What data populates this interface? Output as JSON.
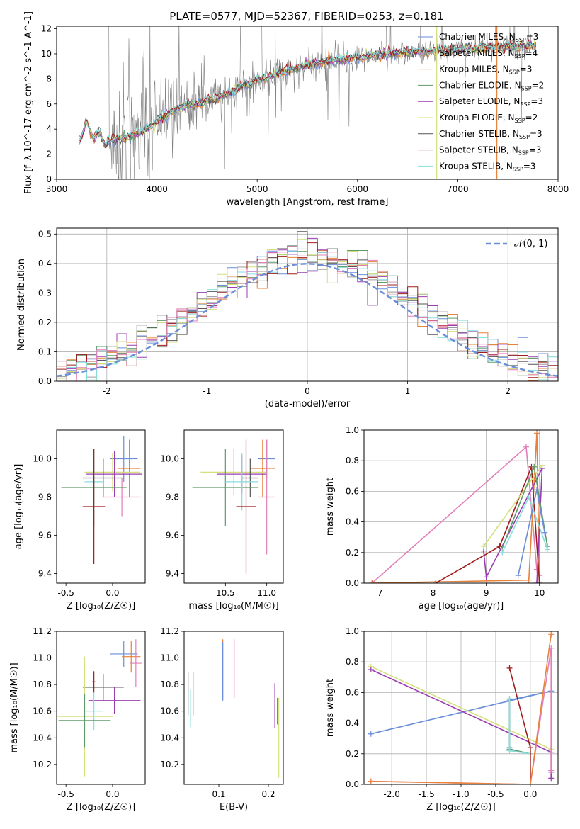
{
  "figure_title": "PLATE=0577, MJD=52367, FIBERID=0253, z=0.181",
  "colors": {
    "Chabrier MILES": "#6a8ed9",
    "Salpeter MILES": "#9a9a9a",
    "Kroupa MILES": "#e8823a",
    "Chabrier ELODIE": "#5f9b6a",
    "Salpeter ELODIE": "#9b3db3",
    "Kroupa ELODIE": "#d4e07a",
    "Chabrier STELIB": "#555555",
    "Salpeter STELIB": "#a01c1c",
    "Kroupa STELIB": "#86dede",
    "magenta": "#e27fb8",
    "grid": "#b0b0b0"
  },
  "chart_data": [
    {
      "id": "spectrum",
      "type": "line",
      "title": "PLATE=0577, MJD=52367, FIBERID=0253, z=0.181",
      "xlabel": "wavelength [Angstrom, rest frame]",
      "ylabel": "Flux [f_λ 10^-17 erg cm^-2 s^-1 A^-1]",
      "xlim": [
        3000,
        8000
      ],
      "ylim": [
        0,
        12.2
      ],
      "xticks": [
        3000,
        4000,
        5000,
        6000,
        7000,
        8000
      ],
      "yticks": [
        0,
        2,
        4,
        6,
        8,
        10,
        12
      ],
      "grid": false,
      "legend_position": "top-right",
      "legend": [
        {
          "label": "Chabrier MILES, N",
          "sub": "SSP",
          "suffix": "=3",
          "color": "#6a8ed9"
        },
        {
          "label": "Salpeter MILES, N",
          "sub": "SSP",
          "suffix": "=4",
          "color": "#9a9a9a"
        },
        {
          "label": "Kroupa MILES, N",
          "sub": "SSP",
          "suffix": "=3",
          "color": "#e8823a"
        },
        {
          "label": "Chabrier ELODIE, N",
          "sub": "SSP",
          "suffix": "=2",
          "color": "#5f9b6a"
        },
        {
          "label": "Salpeter ELODIE, N",
          "sub": "SSP",
          "suffix": "=3",
          "color": "#9b3db3"
        },
        {
          "label": "Kroupa ELODIE, N",
          "sub": "SSP",
          "suffix": "=2",
          "color": "#d4e07a"
        },
        {
          "label": "Chabrier STELIB, N",
          "sub": "SSP",
          "suffix": "=3",
          "color": "#555555"
        },
        {
          "label": "Salpeter STELIB, N",
          "sub": "SSP",
          "suffix": "=3",
          "color": "#a01c1c"
        },
        {
          "label": "Kroupa STELIB, N",
          "sub": "SSP",
          "suffix": "=3",
          "color": "#86dede"
        }
      ],
      "model_continuum": {
        "x": [
          3230,
          3300,
          3400,
          3500,
          3600,
          3700,
          3800,
          3900,
          4000,
          4100,
          4200,
          4300,
          4400,
          4500,
          4600,
          4700,
          4800,
          4900,
          5000,
          5100,
          5200,
          5300,
          5400,
          5500,
          5600,
          5700,
          5800,
          5900,
          6000,
          6100,
          6200,
          6300,
          6400,
          6500,
          6600,
          6700,
          6800,
          6900,
          7000,
          7100,
          7200,
          7300,
          7400,
          7500,
          7600,
          7700,
          7800
        ],
        "y": [
          3.5,
          4.2,
          3.4,
          3.0,
          3.2,
          3.3,
          3.6,
          4.0,
          4.6,
          5.2,
          5.6,
          5.9,
          6.0,
          6.3,
          6.4,
          6.8,
          7.2,
          7.6,
          7.9,
          8.1,
          8.4,
          8.6,
          8.9,
          9.1,
          9.2,
          9.4,
          9.5,
          9.6,
          9.7,
          9.8,
          9.9,
          10.0,
          10.05,
          10.1,
          10.15,
          10.2,
          10.25,
          10.3,
          10.35,
          10.4,
          10.45,
          10.5,
          10.55,
          10.6,
          10.6,
          10.65,
          10.7
        ]
      },
      "vertical_lines": [
        {
          "x": 6790,
          "color": "#d4e07a"
        },
        {
          "x": 7390,
          "color": "#e8823a"
        }
      ]
    },
    {
      "id": "residuals",
      "type": "histogram",
      "xlabel": "(data-model)/error",
      "ylabel": "Normed distribution",
      "xlim": [
        -2.5,
        2.5
      ],
      "ylim": [
        0,
        0.52
      ],
      "xticks": [
        -2,
        -1,
        0,
        1,
        2
      ],
      "yticks": [
        0.0,
        0.1,
        0.2,
        0.3,
        0.4,
        0.5
      ],
      "grid": true,
      "bin_width": 0.1,
      "legend_position": "top-right",
      "legend": [
        {
          "label": "𝒩(0, 1)",
          "color": "#6a8ed9",
          "style": "dashed"
        }
      ],
      "reference_curve": "standard normal"
    },
    {
      "id": "age_vs_Z",
      "type": "errorbar",
      "xlabel": "Z [log₁₀(Z/Z☉)]",
      "ylabel": "age  [log₁₀(age/yr)]",
      "xlim": [
        -0.6,
        0.35
      ],
      "ylim": [
        9.35,
        10.15
      ],
      "xticks": [
        -0.5,
        0.0
      ],
      "yticks": [
        9.4,
        9.6,
        9.8,
        10.0
      ],
      "points": [
        {
          "x": 0.12,
          "xerr": 0.15,
          "y": 10.0,
          "yerr": 0.12,
          "color": "#6a8ed9"
        },
        {
          "x": 0.18,
          "xerr": 0.12,
          "y": 9.95,
          "yerr": 0.15,
          "color": "#e8823a"
        },
        {
          "x": 0.0,
          "xerr": 0.3,
          "y": 9.93,
          "yerr": 0.1,
          "color": "#d4e07a"
        },
        {
          "x": 0.02,
          "xerr": 0.3,
          "y": 9.92,
          "yerr": 0.12,
          "color": "#9b3db3"
        },
        {
          "x": -0.1,
          "xerr": 0.22,
          "y": 9.9,
          "yerr": 0.1,
          "color": "#555555"
        },
        {
          "x": 0.1,
          "xerr": 0.2,
          "y": 9.8,
          "yerr": 0.1,
          "color": "#e27fb8"
        },
        {
          "x": -0.2,
          "xerr": 0.35,
          "y": 9.85,
          "yerr": 0.2,
          "color": "#5f9b6a"
        },
        {
          "x": -0.2,
          "xerr": 0.1,
          "y": 9.88,
          "yerr": 0.15,
          "color": "#86dede"
        },
        {
          "x": -0.2,
          "xerr": 0.12,
          "y": 9.75,
          "yerr": 0.3,
          "color": "#a01c1c"
        }
      ]
    },
    {
      "id": "age_vs_mass",
      "type": "errorbar",
      "xlabel": "mass [log₁₀(M/M☉)]",
      "ylabel": "",
      "xlim": [
        10.0,
        11.2
      ],
      "ylim": [
        9.35,
        10.15
      ],
      "xticks": [
        10.5,
        11.0
      ],
      "yticks": [
        9.4,
        9.6,
        9.8,
        10.0
      ],
      "points": [
        {
          "x": 11.0,
          "xerr": 0.1,
          "y": 10.0,
          "yerr": 0.1,
          "color": "#6a8ed9"
        },
        {
          "x": 10.95,
          "xerr": 0.15,
          "y": 9.95,
          "yerr": 0.15,
          "color": "#e8823a"
        },
        {
          "x": 10.6,
          "xerr": 0.4,
          "y": 9.93,
          "yerr": 0.12,
          "color": "#d4e07a"
        },
        {
          "x": 10.7,
          "xerr": 0.3,
          "y": 9.92,
          "yerr": 0.1,
          "color": "#9b3db3"
        },
        {
          "x": 10.8,
          "xerr": 0.1,
          "y": 9.9,
          "yerr": 0.1,
          "color": "#555555"
        },
        {
          "x": 11.0,
          "xerr": 0.1,
          "y": 9.8,
          "yerr": 0.3,
          "color": "#e27fb8"
        },
        {
          "x": 10.5,
          "xerr": 0.4,
          "y": 9.85,
          "yerr": 0.2,
          "color": "#5f9b6a"
        },
        {
          "x": 10.7,
          "xerr": 0.2,
          "y": 9.88,
          "yerr": 0.15,
          "color": "#86dede"
        },
        {
          "x": 10.75,
          "xerr": 0.12,
          "y": 9.75,
          "yerr": 0.35,
          "color": "#a01c1c"
        }
      ]
    },
    {
      "id": "massweight_vs_age",
      "type": "line",
      "xlabel": "age  [log₁₀(age/yr)]",
      "ylabel": "mass weight",
      "xlim": [
        6.7,
        10.35
      ],
      "ylim": [
        0,
        1.0
      ],
      "xticks": [
        7,
        8,
        9,
        10
      ],
      "yticks": [
        0.0,
        0.2,
        0.4,
        0.6,
        0.8,
        1.0
      ],
      "grid": true,
      "series": [
        {
          "color": "#e27fb8",
          "x": [
            6.85,
            9.75,
            9.95,
            10.0
          ],
          "y": [
            0.0,
            0.89,
            0.09,
            0.05
          ]
        },
        {
          "color": "#e8823a",
          "x": [
            6.85,
            9.8,
            9.95,
            10.0
          ],
          "y": [
            0.0,
            0.02,
            0.98,
            0.0
          ]
        },
        {
          "color": "#a01c1c",
          "x": [
            8.05,
            9.25,
            9.85,
            10.0
          ],
          "y": [
            0.0,
            0.24,
            0.76,
            0.0
          ]
        },
        {
          "color": "#9b3db3",
          "x": [
            8.95,
            9.0,
            10.05,
            9.95
          ],
          "y": [
            0.21,
            0.04,
            0.75,
            0.0
          ]
        },
        {
          "color": "#d4e07a",
          "x": [
            8.95,
            10.05
          ],
          "y": [
            0.24,
            0.77
          ]
        },
        {
          "color": "#5f9b6a",
          "x": [
            9.3,
            9.9,
            10.15
          ],
          "y": [
            0.23,
            0.76,
            0.24
          ]
        },
        {
          "color": "#6a8ed9",
          "x": [
            9.6,
            9.95,
            10.1
          ],
          "y": [
            0.05,
            0.61,
            0.33
          ]
        },
        {
          "color": "#86dede",
          "x": [
            9.3,
            9.8,
            10.15
          ],
          "y": [
            0.2,
            0.56,
            0.22
          ]
        }
      ]
    },
    {
      "id": "mass_vs_Z",
      "type": "errorbar",
      "xlabel": "Z [log₁₀(Z/Z☉)]",
      "ylabel": "mass [log₁₀(M/M☉)]",
      "xlim": [
        -0.6,
        0.35
      ],
      "ylim": [
        10.05,
        11.2
      ],
      "xticks": [
        -0.5,
        0.0
      ],
      "yticks": [
        10.2,
        10.4,
        10.6,
        10.8,
        11.0,
        11.2
      ],
      "points": [
        {
          "x": 0.12,
          "xerr": 0.15,
          "y": 11.03,
          "yerr": 0.1,
          "color": "#6a8ed9"
        },
        {
          "x": 0.2,
          "xerr": 0.1,
          "y": 11.01,
          "yerr": 0.12,
          "color": "#e8823a"
        },
        {
          "x": 0.25,
          "xerr": 0.06,
          "y": 10.96,
          "yerr": 0.18,
          "color": "#e27fb8"
        },
        {
          "x": -0.1,
          "xerr": 0.22,
          "y": 10.78,
          "yerr": 0.1,
          "color": "#555555"
        },
        {
          "x": -0.2,
          "xerr": 0.02,
          "y": 10.82,
          "yerr": 0.08,
          "color": "#a01c1c"
        },
        {
          "x": 0.02,
          "xerr": 0.28,
          "y": 10.68,
          "yerr": 0.1,
          "color": "#9b3db3"
        },
        {
          "x": -0.2,
          "xerr": 0.1,
          "y": 10.6,
          "yerr": 0.14,
          "color": "#86dede"
        },
        {
          "x": -0.3,
          "xerr": 0.3,
          "y": 10.56,
          "yerr": 0.45,
          "color": "#d4e07a"
        },
        {
          "x": -0.3,
          "xerr": 0.28,
          "y": 10.53,
          "yerr": 0.2,
          "color": "#5f9b6a"
        }
      ]
    },
    {
      "id": "mass_vs_EBV",
      "type": "errorbar",
      "xlabel": "E(B-V)",
      "ylabel": "",
      "xlim": [
        0.03,
        0.23
      ],
      "ylim": [
        10.05,
        11.2
      ],
      "xticks": [
        0.1,
        0.2
      ],
      "yticks": [
        10.2,
        10.4,
        10.6,
        10.8,
        11.0,
        11.2
      ],
      "points": [
        {
          "x": 0.108,
          "yerr": 0.23,
          "y": 10.91,
          "color": "#e8823a"
        },
        {
          "x": 0.108,
          "yerr": 0.22,
          "y": 10.9,
          "color": "#6a8ed9"
        },
        {
          "x": 0.131,
          "yerr": 0.22,
          "y": 10.92,
          "color": "#e27fb8"
        },
        {
          "x": 0.038,
          "yerr": 0.16,
          "y": 10.73,
          "color": "#555555"
        },
        {
          "x": 0.048,
          "yerr": 0.16,
          "y": 10.73,
          "color": "#a01c1c"
        },
        {
          "x": 0.043,
          "yerr": 0.14,
          "y": 10.62,
          "color": "#86dede"
        },
        {
          "x": 0.213,
          "yerr": 0.17,
          "y": 10.64,
          "color": "#9b3db3"
        },
        {
          "x": 0.221,
          "yerr": 0.3,
          "y": 10.4,
          "color": "#d4e07a"
        },
        {
          "x": 0.218,
          "yerr": 0.1,
          "y": 10.6,
          "color": "#5f9b6a"
        }
      ]
    },
    {
      "id": "massweight_vs_Z",
      "type": "line",
      "xlabel": "Z [log₁₀(Z/Z☉)]",
      "ylabel": "mass weight",
      "xlim": [
        -2.4,
        0.4
      ],
      "ylim": [
        0,
        1.0
      ],
      "xticks": [
        -2.0,
        -1.5,
        -1.0,
        -0.5,
        0.0
      ],
      "yticks": [
        0.0,
        0.2,
        0.4,
        0.6,
        0.8,
        1.0
      ],
      "grid": true,
      "series": [
        {
          "color": "#6a8ed9",
          "x": [
            -2.3,
            0.3,
            -0.3,
            -0.3
          ],
          "y": [
            0.33,
            0.61,
            0.55,
            0.24
          ]
        },
        {
          "color": "#d4e07a",
          "x": [
            -2.3,
            0.3
          ],
          "y": [
            0.77,
            0.23
          ]
        },
        {
          "color": "#9b3db3",
          "x": [
            -2.3,
            0.3,
            0.3,
            0.3
          ],
          "y": [
            0.75,
            0.21,
            0.04,
            0.08
          ]
        },
        {
          "color": "#5f9b6a",
          "x": [
            -0.3,
            -0.3,
            0.0
          ],
          "y": [
            0.56,
            0.23,
            0.2
          ]
        },
        {
          "color": "#86dede",
          "x": [
            -0.3,
            -0.3,
            0.0
          ],
          "y": [
            0.56,
            0.22,
            0.2
          ]
        },
        {
          "color": "#a01c1c",
          "x": [
            -0.3,
            0.0,
            0.0
          ],
          "y": [
            0.76,
            0.24,
            0.0
          ]
        },
        {
          "color": "#e27fb8",
          "x": [
            -2.3,
            0.0,
            0.3,
            0.3
          ],
          "y": [
            0.02,
            0.0,
            0.89,
            0.09
          ]
        },
        {
          "color": "#e8823a",
          "x": [
            -2.3,
            0.0,
            0.3
          ],
          "y": [
            0.02,
            0.0,
            0.98
          ]
        }
      ]
    }
  ]
}
